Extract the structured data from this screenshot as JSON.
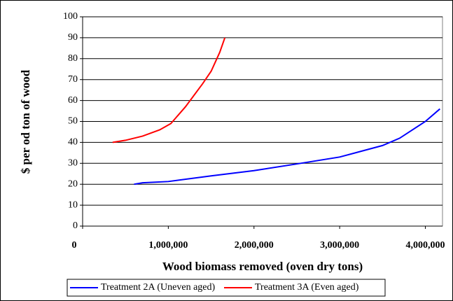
{
  "chart_data": {
    "type": "line",
    "x_label": "Wood biomass removed (oven dry tons)",
    "y_label": "$ per od ton of wood",
    "xlim": [
      0,
      4200000
    ],
    "xticks": [
      0,
      {
        "value": 1000000,
        "label": "1,000,000"
      },
      {
        "value": 2000000,
        "label": "2,000,000"
      },
      {
        "value": 3000000,
        "label": "3,000,000"
      },
      {
        "value": 4000000,
        "label": "4,000,000"
      }
    ],
    "ylim": [
      0,
      100
    ],
    "yticks": [
      0,
      10,
      20,
      30,
      40,
      50,
      60,
      70,
      80,
      90,
      100
    ],
    "grid": true,
    "legend": "bottom",
    "series": [
      {
        "name": "Treatment 2A (Uneven aged)",
        "color": "#0000ff",
        "x": [
          600000,
          700000,
          1000000,
          1500000,
          2000000,
          2500000,
          3000000,
          3500000,
          3700000,
          4000000,
          4170000
        ],
        "values": [
          20,
          20.7,
          21.3,
          24,
          26.5,
          29.7,
          33,
          38.5,
          42,
          50,
          56
        ]
      },
      {
        "name": "Treatment 3A (Even aged)",
        "color": "#ff0000",
        "x": [
          350000,
          500000,
          700000,
          900000,
          1030000,
          1200000,
          1400000,
          1500000,
          1600000,
          1660000
        ],
        "values": [
          40,
          41,
          43,
          46,
          49,
          57,
          68,
          74,
          83,
          90
        ]
      }
    ]
  }
}
